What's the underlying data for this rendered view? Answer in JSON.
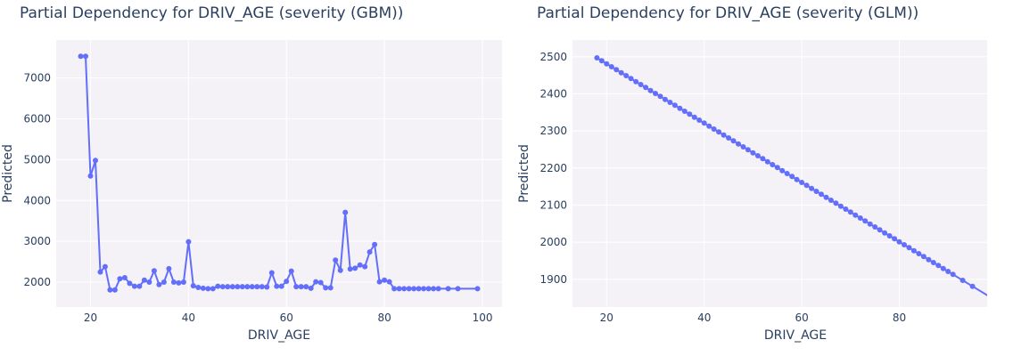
{
  "chart_data": [
    {
      "type": "line",
      "title": "Partial Dependency for DRIV_AGE (severity (GBM))",
      "xlabel": "DRIV_AGE",
      "ylabel": "Predicted",
      "xlim": [
        13,
        104
      ],
      "ylim": [
        1390,
        7930
      ],
      "xticks": [
        20,
        40,
        60,
        80,
        100
      ],
      "yticks": [
        2000,
        3000,
        4000,
        5000,
        6000,
        7000
      ],
      "grid": true,
      "color": "#636efa",
      "x": [
        18,
        19,
        20,
        21,
        22,
        23,
        24,
        25,
        26,
        27,
        28,
        29,
        30,
        31,
        32,
        33,
        34,
        35,
        36,
        37,
        38,
        39,
        40,
        41,
        42,
        43,
        44,
        45,
        46,
        47,
        48,
        49,
        50,
        51,
        52,
        53,
        54,
        55,
        56,
        57,
        58,
        59,
        60,
        61,
        62,
        63,
        64,
        65,
        66,
        67,
        68,
        69,
        70,
        71,
        72,
        73,
        74,
        75,
        76,
        77,
        78,
        79,
        80,
        81,
        82,
        83,
        84,
        85,
        86,
        87,
        88,
        89,
        90,
        91,
        93,
        95,
        99
      ],
      "y": [
        7530,
        7530,
        4600,
        4980,
        2250,
        2380,
        1810,
        1810,
        2080,
        2110,
        1970,
        1900,
        1900,
        2050,
        2000,
        2280,
        1940,
        2000,
        2330,
        2000,
        1980,
        2000,
        2990,
        1910,
        1870,
        1850,
        1840,
        1840,
        1900,
        1890,
        1890,
        1890,
        1890,
        1890,
        1890,
        1890,
        1890,
        1890,
        1880,
        2230,
        1900,
        1900,
        2020,
        2270,
        1890,
        1890,
        1890,
        1850,
        2010,
        1990,
        1860,
        1860,
        2540,
        2290,
        3710,
        2320,
        2340,
        2420,
        2380,
        2740,
        2920,
        2010,
        2050,
        2010,
        1840,
        1840,
        1840,
        1840,
        1840,
        1840,
        1840,
        1840,
        1840,
        1840,
        1840,
        1840,
        1840
      ]
    },
    {
      "type": "line",
      "title": "Partial Dependency for DRIV_AGE (severity (GLM))",
      "xlabel": "DRIV_AGE",
      "ylabel": "Predicted",
      "xlim": [
        13,
        98
      ],
      "ylim": [
        1825,
        2545
      ],
      "xticks": [
        20,
        40,
        60,
        80
      ],
      "yticks": [
        1900,
        2000,
        2100,
        2200,
        2300,
        2400,
        2500
      ],
      "grid": true,
      "color": "#636efa",
      "x": [
        18,
        19,
        20,
        21,
        22,
        23,
        24,
        25,
        26,
        27,
        28,
        29,
        30,
        31,
        32,
        33,
        34,
        35,
        36,
        37,
        38,
        39,
        40,
        41,
        42,
        43,
        44,
        45,
        46,
        47,
        48,
        49,
        50,
        51,
        52,
        53,
        54,
        55,
        56,
        57,
        58,
        59,
        60,
        61,
        62,
        63,
        64,
        65,
        66,
        67,
        68,
        69,
        70,
        71,
        72,
        73,
        74,
        75,
        76,
        77,
        78,
        79,
        80,
        81,
        82,
        83,
        84,
        85,
        86,
        87,
        88,
        89,
        90,
        91,
        93,
        95,
        99
      ],
      "y": [
        2497,
        2489,
        2481,
        2473,
        2465,
        2457,
        2449,
        2441,
        2433,
        2425,
        2417,
        2409,
        2401,
        2393,
        2385,
        2377,
        2369,
        2361,
        2353,
        2345,
        2337,
        2329,
        2321,
        2313,
        2305,
        2297,
        2289,
        2281,
        2273,
        2265,
        2257,
        2249,
        2241,
        2233,
        2225,
        2217,
        2209,
        2201,
        2193,
        2185,
        2177,
        2169,
        2161,
        2153,
        2145,
        2137,
        2129,
        2121,
        2113,
        2105,
        2097,
        2089,
        2081,
        2073,
        2065,
        2057,
        2049,
        2041,
        2033,
        2025,
        2017,
        2009,
        2001,
        1993,
        1985,
        1977,
        1969,
        1961,
        1953,
        1945,
        1937,
        1929,
        1921,
        1913,
        1897,
        1881,
        1849
      ]
    }
  ]
}
